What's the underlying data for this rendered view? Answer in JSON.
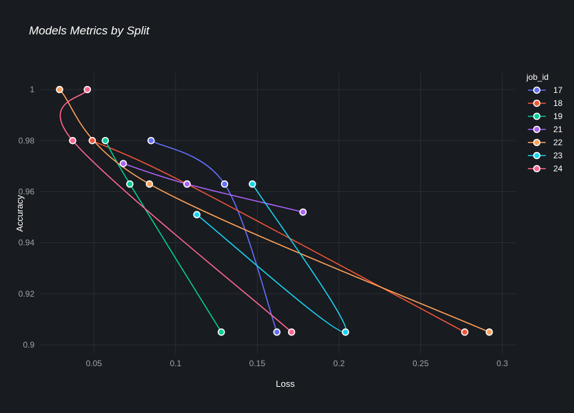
{
  "chart_data": {
    "type": "line",
    "title": "Models Metrics by Split",
    "xlabel": "Loss",
    "ylabel": "Accuracy",
    "xlim": [
      0.017,
      0.308
    ],
    "ylim": [
      0.8965,
      1.0065
    ],
    "x_ticks": [
      0.05,
      0.1,
      0.15,
      0.2,
      0.25,
      0.3
    ],
    "x_tick_labels": [
      "0.05",
      "0.1",
      "0.15",
      "0.2",
      "0.25",
      "0.3"
    ],
    "y_ticks": [
      0.9,
      0.92,
      0.94,
      0.96,
      0.98,
      1.0
    ],
    "y_tick_labels": [
      "0.9",
      "0.92",
      "0.94",
      "0.96",
      "0.98",
      "1"
    ],
    "grid": true,
    "legend": {
      "title": "job_id",
      "position": "right"
    },
    "series": [
      {
        "name": "17",
        "color": "#636efa",
        "points": [
          [
            0.085,
            0.98
          ],
          [
            0.13,
            0.963
          ],
          [
            0.162,
            0.905
          ]
        ]
      },
      {
        "name": "18",
        "color": "#ef553b",
        "points": [
          [
            0.049,
            0.98
          ],
          [
            0.107,
            0.963
          ],
          [
            0.277,
            0.905
          ]
        ]
      },
      {
        "name": "19",
        "color": "#00cc96",
        "points": [
          [
            0.057,
            0.98
          ],
          [
            0.072,
            0.963
          ],
          [
            0.128,
            0.905
          ]
        ]
      },
      {
        "name": "21",
        "color": "#ab63fa",
        "points": [
          [
            0.068,
            0.971
          ],
          [
            0.107,
            0.963
          ],
          [
            0.178,
            0.952
          ]
        ]
      },
      {
        "name": "22",
        "color": "#ffa15a",
        "points": [
          [
            0.029,
            1.0
          ],
          [
            0.084,
            0.963
          ],
          [
            0.292,
            0.905
          ]
        ]
      },
      {
        "name": "23",
        "color": "#19d3f3",
        "points": [
          [
            0.147,
            0.963
          ],
          [
            0.204,
            0.905
          ],
          [
            0.113,
            0.951
          ]
        ]
      },
      {
        "name": "24",
        "color": "#ff6692",
        "points": [
          [
            0.046,
            1.0
          ],
          [
            0.037,
            0.98
          ],
          [
            0.171,
            0.905
          ]
        ]
      }
    ]
  }
}
